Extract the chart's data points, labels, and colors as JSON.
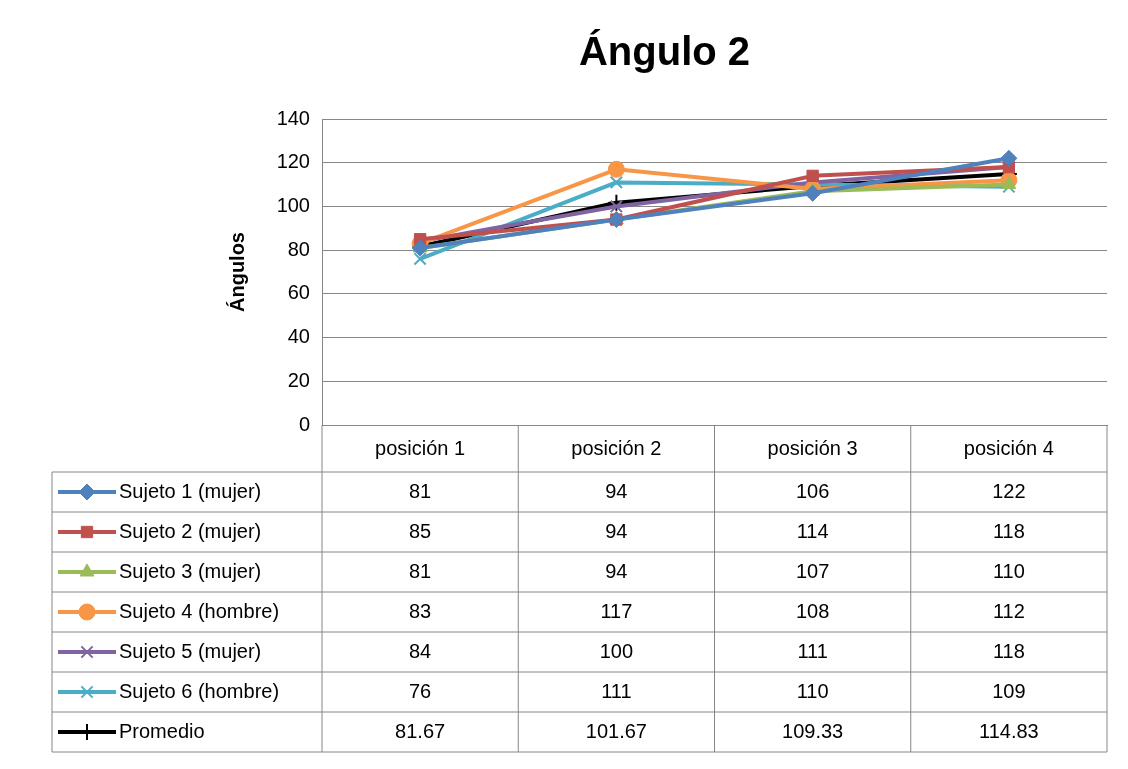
{
  "chart_data": {
    "type": "line",
    "title": "Ángulo 2",
    "ylabel": "Ángulos",
    "categories": [
      "posición 1",
      "posición 2",
      "posición 3",
      "posición 4"
    ],
    "ylim": [
      0,
      140
    ],
    "yticks": [
      0,
      20,
      40,
      60,
      80,
      100,
      120,
      140
    ],
    "grid": "y",
    "legend": "bottom",
    "data_labels": true,
    "line_style": "solid",
    "series": [
      {
        "name": "Sujeto 1 (mujer)",
        "color": "#4f81bd",
        "marker": "diamond",
        "values": [
          81,
          94,
          106,
          122
        ]
      },
      {
        "name": "Sujeto 2 (mujer)",
        "color": "#c0504d",
        "marker": "square",
        "values": [
          85,
          94,
          114,
          118
        ]
      },
      {
        "name": "Sujeto 3 (mujer)",
        "color": "#9bbb59",
        "marker": "triangle",
        "values": [
          81,
          94,
          107,
          110
        ]
      },
      {
        "name": "Sujeto 4 (hombre)",
        "color": "#f79646",
        "marker": "circle",
        "values": [
          83,
          117,
          108,
          112
        ]
      },
      {
        "name": "Sujeto 5 (mujer)",
        "color": "#8064a2",
        "marker": "cross",
        "values": [
          84,
          100,
          111,
          118
        ]
      },
      {
        "name": "Sujeto 6 (hombre)",
        "color": "#4bacc6",
        "marker": "cross",
        "values": [
          76,
          111,
          110,
          109
        ]
      },
      {
        "name": "Promedio",
        "color": "#000000",
        "marker": "plus",
        "values": [
          81.67,
          101.67,
          109.33,
          114.83
        ]
      }
    ]
  }
}
